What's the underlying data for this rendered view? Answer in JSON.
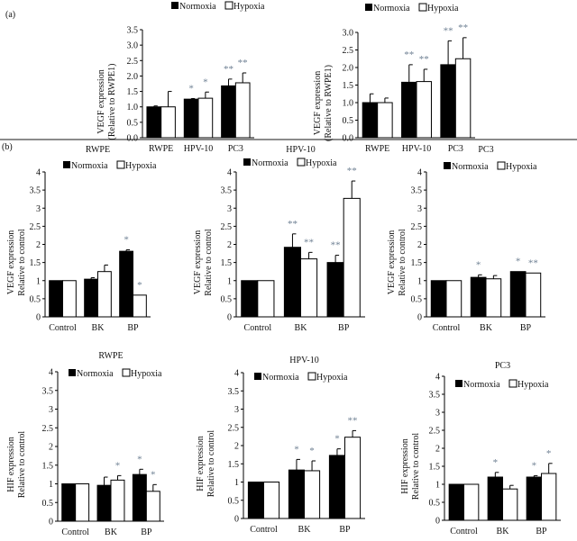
{
  "panel_labels": {
    "a": "(a)",
    "b": "(b)"
  },
  "legend": {
    "normoxia": "Normoxia",
    "hypoxia": "Hypoxia"
  },
  "colors": {
    "normoxia": "#000000",
    "hypoxia": "#ffffff",
    "significance": "#6d7f92"
  },
  "chart_data": [
    {
      "id": "a1",
      "type": "bar",
      "title": "",
      "ylabel": [
        "VEGF expression",
        "(Relative to RWPE1)"
      ],
      "ylim": [
        0,
        3.5
      ],
      "yticks": [
        "0.0",
        "0.5",
        "1.0",
        "1.5",
        "2.0",
        "2.5",
        "3.0",
        "3.5"
      ],
      "categories": [
        "RWPE",
        "HPV-10",
        "PC3"
      ],
      "series": [
        {
          "name": "Normoxia",
          "values": [
            1.0,
            1.25,
            1.68
          ],
          "errors": [
            0.03,
            0.02,
            0.22
          ],
          "significance": [
            "",
            "*",
            "**"
          ]
        },
        {
          "name": "Hypoxia",
          "values": [
            1.0,
            1.28,
            1.78
          ],
          "errors": [
            0.5,
            0.2,
            0.32
          ],
          "significance": [
            "",
            "*",
            "**"
          ]
        }
      ]
    },
    {
      "id": "a2",
      "type": "bar",
      "title": "",
      "ylabel": [
        "VEGF expression",
        "(Relative to RWPE1)"
      ],
      "ylim": [
        0,
        3.0
      ],
      "yticks": [
        "0.0",
        "0.5",
        "1.0",
        "1.5",
        "2.0",
        "2.5",
        "3.0"
      ],
      "categories": [
        "RWPE",
        "HPV-10",
        "PC3"
      ],
      "series": [
        {
          "name": "Normoxia",
          "values": [
            1.0,
            1.58,
            2.08
          ],
          "errors": [
            0.25,
            0.5,
            0.68
          ],
          "significance": [
            "",
            "**",
            "**"
          ]
        },
        {
          "name": "Hypoxia",
          "values": [
            1.0,
            1.6,
            2.25
          ],
          "errors": [
            0.13,
            0.35,
            0.6
          ],
          "significance": [
            "",
            "**",
            "**"
          ]
        }
      ]
    },
    {
      "id": "b1",
      "type": "bar",
      "title": "RWPE",
      "ylabel": [
        "VEGF expression",
        "Relative to control"
      ],
      "ylim": [
        0,
        4
      ],
      "yticks": [
        "0",
        "0.5",
        "1",
        "1.5",
        "2",
        "2.5",
        "3",
        "3.5",
        "4"
      ],
      "categories": [
        "Control",
        "BK",
        "BP"
      ],
      "series": [
        {
          "name": "Normoxia",
          "values": [
            1,
            1.04,
            1.81
          ],
          "errors": [
            0,
            0.04,
            0.04
          ],
          "significance": [
            "",
            "",
            "*"
          ]
        },
        {
          "name": "Hypoxia",
          "values": [
            1,
            1.25,
            0.6
          ],
          "errors": [
            0,
            0.18,
            0
          ],
          "significance": [
            "",
            "",
            "*"
          ]
        }
      ]
    },
    {
      "id": "b2",
      "type": "bar",
      "title": "HPV-10",
      "ylabel": [
        "VEGF expression",
        "Relative to control"
      ],
      "ylim": [
        0,
        4
      ],
      "yticks": [
        "0",
        "0.5",
        "1",
        "1.5",
        "2",
        "2.5",
        "3",
        "3.5",
        "4"
      ],
      "categories": [
        "Control",
        "BK",
        "BP"
      ],
      "series": [
        {
          "name": "Normoxia",
          "values": [
            1,
            1.92,
            1.5
          ],
          "errors": [
            0,
            0.37,
            0.2
          ],
          "significance": [
            "",
            "**",
            "**"
          ]
        },
        {
          "name": "Hypoxia",
          "values": [
            1,
            1.6,
            3.27
          ],
          "errors": [
            0,
            0.18,
            0.48
          ],
          "significance": [
            "",
            "**",
            "**"
          ]
        }
      ]
    },
    {
      "id": "b3",
      "type": "bar",
      "title": "PC3",
      "ylabel": [
        "VEGF expression",
        "Relative to control"
      ],
      "ylim": [
        0,
        4
      ],
      "yticks": [
        "0",
        "0.5",
        "1",
        "1.5",
        "2",
        "2.5",
        "3",
        "3.5",
        "4"
      ],
      "categories": [
        "Control",
        "BK",
        "BP"
      ],
      "series": [
        {
          "name": "Normoxia",
          "values": [
            1,
            1.09,
            1.25
          ],
          "errors": [
            0,
            0.07,
            0
          ],
          "significance": [
            "",
            "*",
            "*"
          ]
        },
        {
          "name": "Hypoxia",
          "values": [
            1,
            1.05,
            1.21
          ],
          "errors": [
            0,
            0.09,
            0
          ],
          "significance": [
            "",
            "",
            "**"
          ]
        }
      ]
    },
    {
      "id": "b4",
      "type": "bar",
      "title": "RWPE",
      "ylabel": [
        "HIF expression",
        "Relative to control"
      ],
      "ylim": [
        0,
        4
      ],
      "yticks": [
        "0",
        "0.5",
        "1",
        "1.5",
        "2",
        "2.5",
        "3",
        "3.5",
        "4"
      ],
      "categories": [
        "Control",
        "BK",
        "BP"
      ],
      "series": [
        {
          "name": "Normoxia",
          "values": [
            1,
            0.96,
            1.25
          ],
          "errors": [
            0,
            0.22,
            0.14
          ],
          "significance": [
            "",
            "",
            "*"
          ]
        },
        {
          "name": "Hypoxia",
          "values": [
            1,
            1.1,
            0.8
          ],
          "errors": [
            0,
            0.12,
            0.18
          ],
          "significance": [
            "",
            "*",
            "*"
          ]
        }
      ]
    },
    {
      "id": "b5",
      "type": "bar",
      "title": "HPV-10",
      "ylabel": [
        "HIF expression",
        "Relative to control"
      ],
      "ylim": [
        0,
        4
      ],
      "yticks": [
        "0",
        "0.5",
        "1",
        "1.5",
        "2",
        "2.5",
        "3",
        "3.5",
        "4"
      ],
      "categories": [
        "Control",
        "BK",
        "BP"
      ],
      "series": [
        {
          "name": "Normoxia",
          "values": [
            1,
            1.33,
            1.73
          ],
          "errors": [
            0,
            0.29,
            0.18
          ],
          "significance": [
            "",
            "*",
            "*"
          ]
        },
        {
          "name": "Hypoxia",
          "values": [
            1,
            1.31,
            2.23
          ],
          "errors": [
            0,
            0.27,
            0.18
          ],
          "significance": [
            "",
            "*",
            "**"
          ]
        }
      ]
    },
    {
      "id": "b6",
      "type": "bar",
      "title": "PC3",
      "ylabel": [
        "HIF expression",
        "Relative to control"
      ],
      "ylim": [
        0,
        4
      ],
      "yticks": [
        "0",
        "0.5",
        "1",
        "1.5",
        "2",
        "2.5",
        "3",
        "3.5",
        "4"
      ],
      "categories": [
        "Control",
        "BK",
        "BP"
      ],
      "series": [
        {
          "name": "Normoxia",
          "values": [
            1,
            1.2,
            1.2
          ],
          "errors": [
            0,
            0.13,
            0.04
          ],
          "significance": [
            "",
            "*",
            "*"
          ]
        },
        {
          "name": "Hypoxia",
          "values": [
            1,
            0.87,
            1.3
          ],
          "errors": [
            0,
            0.1,
            0.28
          ],
          "significance": [
            "",
            "",
            "*"
          ]
        }
      ]
    }
  ]
}
